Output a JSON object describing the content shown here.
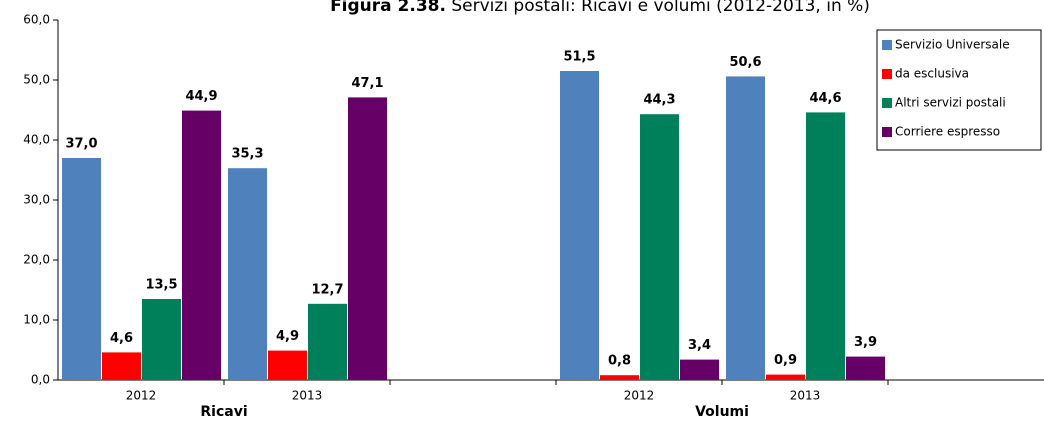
{
  "chart_data": {
    "type": "bar",
    "title_prefix": "Figura 2.38.",
    "title": "Servizi postali: Ricavi e volumi (2012-2013, in %)",
    "categories": [
      "2012",
      "2013",
      null,
      "2012",
      "2013",
      null
    ],
    "groups": [
      "Ricavi",
      "Volumi"
    ],
    "series": [
      {
        "name": "Servizio Universale",
        "color": "#4f81bd",
        "values": [
          37.0,
          35.3,
          null,
          51.5,
          50.6,
          null
        ],
        "value_labels": [
          "37,0",
          "35,3",
          null,
          "51,5",
          "50,6",
          null
        ]
      },
      {
        "name": "da esclusiva",
        "color": "#ff0000",
        "values": [
          4.6,
          4.9,
          null,
          0.8,
          0.9,
          null
        ],
        "value_labels": [
          "4,6",
          "4,9",
          null,
          "0,8",
          "0,9",
          null
        ]
      },
      {
        "name": "Altri servizi postali",
        "color": "#00805a",
        "values": [
          13.5,
          12.7,
          null,
          44.3,
          44.6,
          null
        ],
        "value_labels": [
          "13,5",
          "12,7",
          null,
          "44,3",
          "44,6",
          null
        ]
      },
      {
        "name": "Corriere espresso",
        "color": "#660066",
        "values": [
          44.9,
          47.1,
          null,
          3.4,
          3.9,
          null
        ],
        "value_labels": [
          "44,9",
          "47,1",
          null,
          "3,4",
          "3,9",
          null
        ]
      }
    ],
    "ylim": [
      0,
      60
    ],
    "yticks": [
      {
        "value": 0,
        "label": "0,0"
      },
      {
        "value": 10,
        "label": "10,0"
      },
      {
        "value": 20,
        "label": "20,0"
      },
      {
        "value": 30,
        "label": "30,0"
      },
      {
        "value": 40,
        "label": "40,0"
      },
      {
        "value": 50,
        "label": "50,0"
      },
      {
        "value": 60,
        "label": "60,0"
      }
    ],
    "legend": "top-right"
  }
}
